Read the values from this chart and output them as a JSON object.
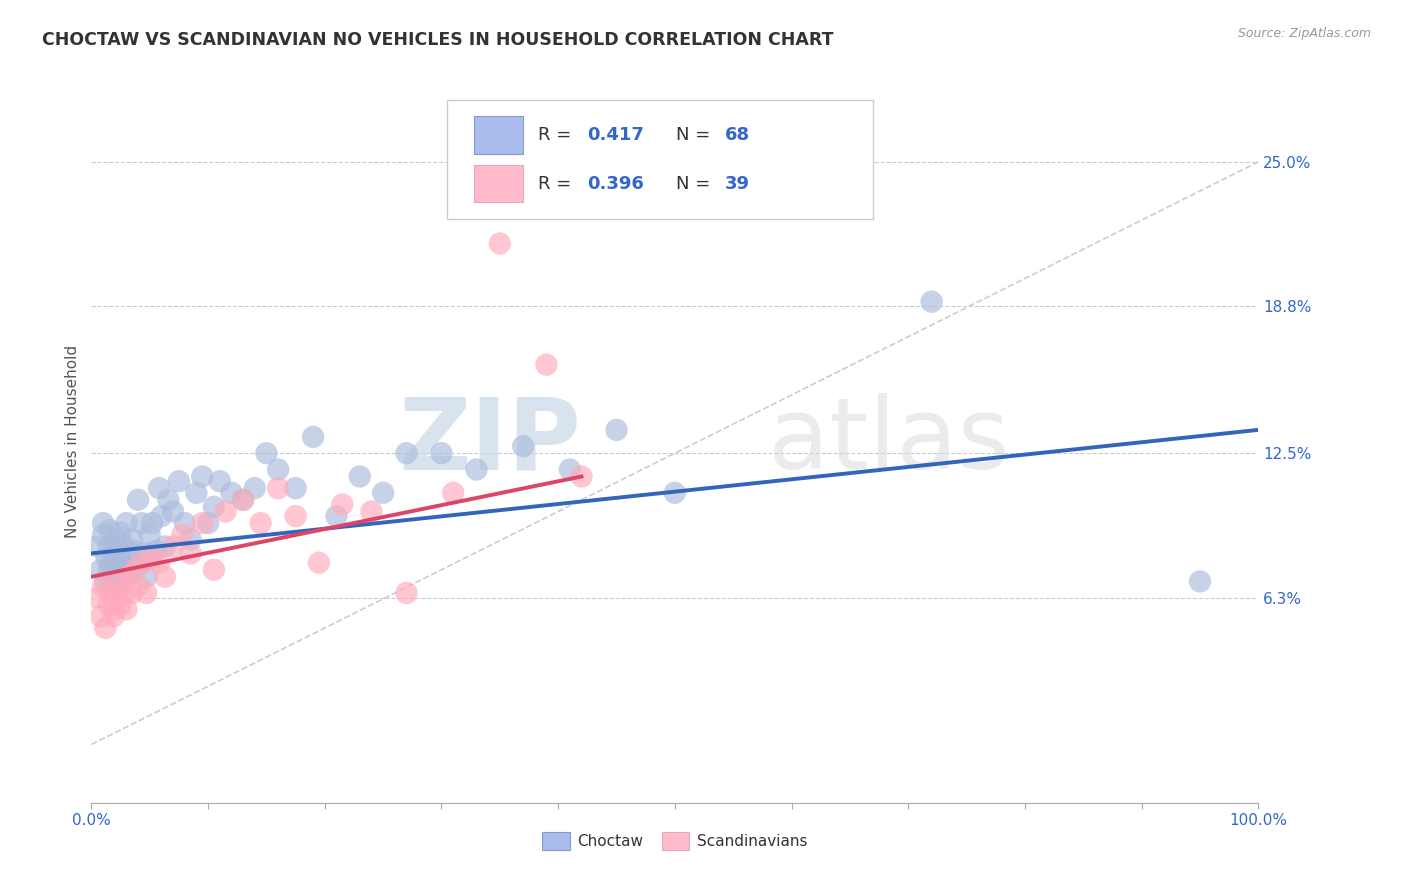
{
  "title": "CHOCTAW VS SCANDINAVIAN NO VEHICLES IN HOUSEHOLD CORRELATION CHART",
  "source_text": "Source: ZipAtlas.com",
  "ylabel": "No Vehicles in Household",
  "ylabel_right_ticks": [
    "6.3%",
    "12.5%",
    "18.8%",
    "25.0%"
  ],
  "ylabel_right_values": [
    0.063,
    0.125,
    0.188,
    0.25
  ],
  "xlim": [
    0.0,
    1.0
  ],
  "ylim": [
    -0.025,
    0.285
  ],
  "choctaw_color": "#aabbdd",
  "scandinavian_color": "#ffaabb",
  "choctaw_R": 0.417,
  "choctaw_N": 68,
  "scandinavian_R": 0.396,
  "scandinavian_N": 39,
  "choctaw_line_color": "#3366bb",
  "scandinavian_line_color": "#dd4466",
  "legend_label_1": "Choctaw",
  "legend_label_2": "Scandinavians",
  "watermark_zip": "ZIP",
  "watermark_atlas": "atlas",
  "background_color": "#ffffff",
  "choctaw_x": [
    0.005,
    0.008,
    0.01,
    0.01,
    0.012,
    0.013,
    0.015,
    0.015,
    0.016,
    0.017,
    0.018,
    0.019,
    0.02,
    0.02,
    0.021,
    0.022,
    0.023,
    0.024,
    0.025,
    0.026,
    0.027,
    0.028,
    0.03,
    0.03,
    0.032,
    0.034,
    0.035,
    0.037,
    0.04,
    0.042,
    0.043,
    0.045,
    0.047,
    0.05,
    0.052,
    0.055,
    0.058,
    0.06,
    0.063,
    0.066,
    0.07,
    0.075,
    0.08,
    0.085,
    0.09,
    0.095,
    0.1,
    0.105,
    0.11,
    0.12,
    0.13,
    0.14,
    0.15,
    0.16,
    0.175,
    0.19,
    0.21,
    0.23,
    0.25,
    0.27,
    0.3,
    0.33,
    0.37,
    0.41,
    0.45,
    0.5,
    0.72,
    0.95
  ],
  "choctaw_y": [
    0.085,
    0.075,
    0.09,
    0.095,
    0.07,
    0.08,
    0.075,
    0.085,
    0.092,
    0.078,
    0.068,
    0.073,
    0.082,
    0.088,
    0.072,
    0.076,
    0.083,
    0.068,
    0.091,
    0.079,
    0.086,
    0.074,
    0.095,
    0.077,
    0.08,
    0.073,
    0.088,
    0.083,
    0.105,
    0.078,
    0.095,
    0.082,
    0.072,
    0.09,
    0.095,
    0.083,
    0.11,
    0.098,
    0.085,
    0.105,
    0.1,
    0.113,
    0.095,
    0.088,
    0.108,
    0.115,
    0.095,
    0.102,
    0.113,
    0.108,
    0.105,
    0.11,
    0.125,
    0.118,
    0.11,
    0.132,
    0.098,
    0.115,
    0.108,
    0.125,
    0.125,
    0.118,
    0.128,
    0.118,
    0.135,
    0.108,
    0.19,
    0.07
  ],
  "scandinavian_x": [
    0.005,
    0.008,
    0.01,
    0.012,
    0.015,
    0.017,
    0.019,
    0.02,
    0.022,
    0.025,
    0.027,
    0.03,
    0.032,
    0.035,
    0.038,
    0.04,
    0.043,
    0.047,
    0.052,
    0.058,
    0.063,
    0.07,
    0.078,
    0.085,
    0.095,
    0.105,
    0.115,
    0.13,
    0.145,
    0.16,
    0.175,
    0.195,
    0.215,
    0.24,
    0.27,
    0.31,
    0.35,
    0.39,
    0.42
  ],
  "scandinavian_y": [
    0.063,
    0.055,
    0.068,
    0.05,
    0.06,
    0.065,
    0.055,
    0.058,
    0.07,
    0.06,
    0.065,
    0.058,
    0.072,
    0.065,
    0.075,
    0.068,
    0.078,
    0.065,
    0.08,
    0.078,
    0.072,
    0.085,
    0.09,
    0.082,
    0.095,
    0.075,
    0.1,
    0.105,
    0.095,
    0.11,
    0.098,
    0.078,
    0.103,
    0.1,
    0.065,
    0.108,
    0.215,
    0.163,
    0.115
  ],
  "choctaw_line_x": [
    0.0,
    1.0
  ],
  "choctaw_line_y": [
    0.082,
    0.135
  ],
  "scandinavian_line_x": [
    0.0,
    0.42
  ],
  "scandinavian_line_y": [
    0.072,
    0.115
  ],
  "diag_line_x": [
    0.0,
    1.0
  ],
  "diag_line_y": [
    0.0,
    0.25
  ]
}
